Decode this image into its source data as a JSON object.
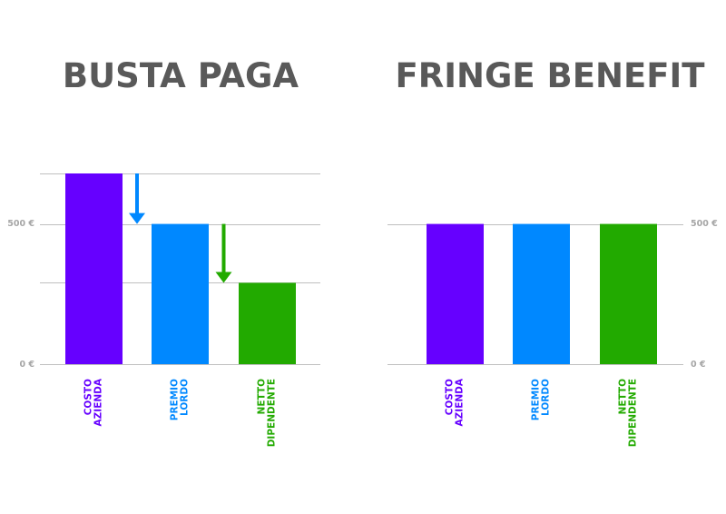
{
  "colors": {
    "costo": "#6600ff",
    "premio": "#0088ff",
    "netto": "#22aa00",
    "title": "#595959",
    "tick": "#a6a6a6",
    "grid": "#bfbfbf"
  },
  "chart_data": [
    {
      "type": "bar",
      "title": "BUSTA PAGA",
      "categories": [
        "COSTO AZIENDA",
        "PREMIO LORDO",
        "NETTO DIPENDENTE"
      ],
      "category_lines": [
        [
          "COSTO",
          "AZIENDA"
        ],
        [
          "PREMIO",
          "LORDO"
        ],
        [
          "NETTO",
          "DIPENDENTE"
        ]
      ],
      "values": [
        680,
        500,
        290
      ],
      "ylim": [
        0,
        680
      ],
      "ytick_labels": [
        "500 €",
        "0 €"
      ],
      "yticks": [
        500,
        0
      ],
      "grid": true,
      "gridlines": [
        0,
        290,
        500,
        680
      ],
      "axis_side": "left",
      "arrows": [
        {
          "from": 680,
          "to": 500,
          "color": "premio"
        },
        {
          "from": 500,
          "to": 290,
          "color": "netto"
        }
      ]
    },
    {
      "type": "bar",
      "title": "FRINGE BENEFIT",
      "categories": [
        "COSTO AZIENDA",
        "PREMIO LORDO",
        "NETTO DIPENDENTE"
      ],
      "category_lines": [
        [
          "COSTO",
          "AZIENDA"
        ],
        [
          "PREMIO",
          "LORDO"
        ],
        [
          "NETTO",
          "DIPENDENTE"
        ]
      ],
      "values": [
        500,
        500,
        500
      ],
      "ylim": [
        0,
        680
      ],
      "ytick_labels": [
        "500 €",
        "0 €"
      ],
      "yticks": [
        500,
        0
      ],
      "grid": true,
      "gridlines": [
        0,
        500
      ],
      "axis_side": "right"
    }
  ]
}
